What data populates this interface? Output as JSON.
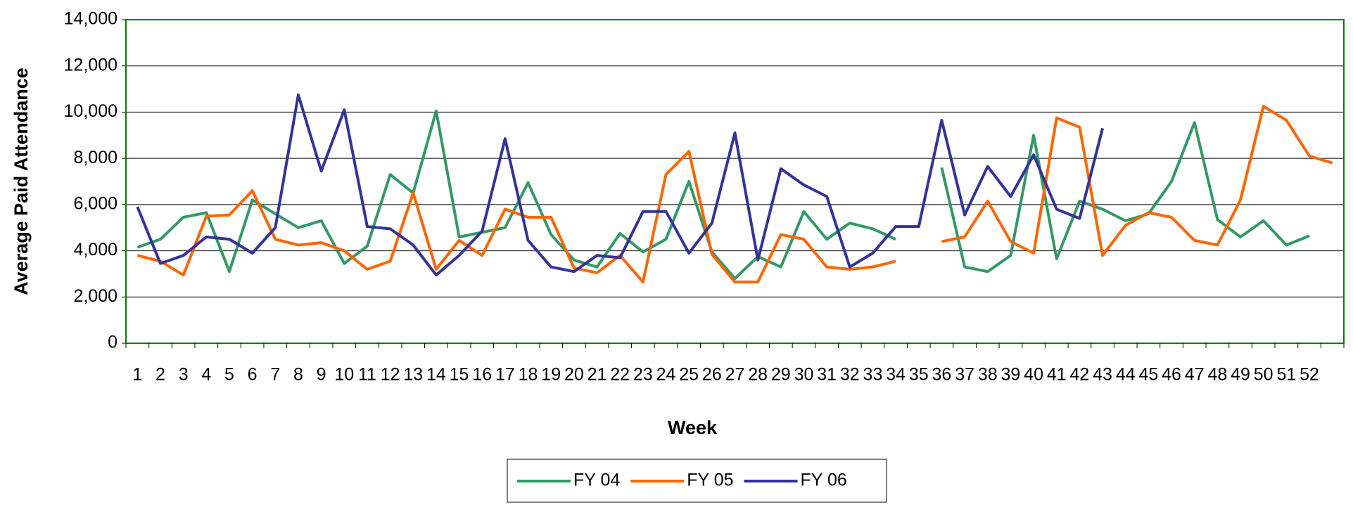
{
  "chart_data": {
    "type": "line",
    "y_label": "Average Paid Attendance",
    "x_label": "Week",
    "categories": [
      "1",
      "2",
      "3",
      "4",
      "5",
      "6",
      "7",
      "8",
      "9",
      "10",
      "11",
      "12",
      "13",
      "14",
      "15",
      "16",
      "17",
      "18",
      "19",
      "20",
      "21",
      "22",
      "23",
      "24",
      "25",
      "26",
      "27",
      "28",
      "29",
      "30",
      "31",
      "32",
      "33",
      "34",
      "35",
      "36",
      "37",
      "38",
      "39",
      "40",
      "41",
      "42",
      "43",
      "44",
      "45",
      "46",
      "47",
      "48",
      "49",
      "50",
      "51",
      "52",
      null
    ],
    "series": [
      {
        "name": "FY 04",
        "color": "#339966",
        "values": [
          4150,
          4500,
          5450,
          5650,
          3100,
          6200,
          5600,
          5000,
          5300,
          3450,
          4200,
          7300,
          6500,
          10050,
          4600,
          4800,
          5000,
          6950,
          4700,
          3600,
          3300,
          4750,
          3950,
          4500,
          7000,
          3950,
          2800,
          3750,
          3300,
          5700,
          4500,
          5200,
          4950,
          4500,
          null,
          7600,
          3300,
          3100,
          3800,
          9000,
          3650,
          6150,
          5800,
          5300,
          5600,
          7000,
          9550,
          5350,
          4600,
          5300,
          4250,
          4650,
          null
        ]
      },
      {
        "name": "FY 05",
        "color": "#ff6600",
        "values": [
          3800,
          3550,
          2950,
          5500,
          5550,
          6600,
          4500,
          4250,
          4350,
          4000,
          3200,
          3550,
          6500,
          3200,
          4450,
          3800,
          5800,
          5450,
          5450,
          3250,
          3050,
          3800,
          2650,
          7300,
          8300,
          3850,
          2650,
          2650,
          4700,
          4500,
          3300,
          3200,
          3300,
          3550,
          null,
          4400,
          4600,
          6150,
          4400,
          3900,
          9750,
          9350,
          3800,
          5100,
          5650,
          5450,
          4450,
          4250,
          6200,
          10250,
          9650,
          8100,
          7800
        ]
      },
      {
        "name": "FY 06",
        "color": "#333399",
        "values": [
          5900,
          3450,
          3800,
          4600,
          4500,
          3900,
          5000,
          10750,
          7450,
          10100,
          5050,
          4950,
          4250,
          2950,
          3800,
          4850,
          8850,
          4450,
          3300,
          3100,
          3800,
          3700,
          5700,
          5700,
          3900,
          5200,
          9100,
          3600,
          7550,
          6850,
          6350,
          3300,
          3900,
          5050,
          5050,
          9650,
          5550,
          7650,
          6350,
          8150,
          5800,
          5400,
          9300,
          null,
          null,
          null,
          null,
          null,
          null,
          null,
          null,
          null,
          null
        ]
      }
    ],
    "ylim": [
      0,
      14000
    ],
    "yticks": [
      0,
      {
        "value": 2000,
        "label": "2,000"
      },
      {
        "value": 4000,
        "label": "4,000"
      },
      {
        "value": 6000,
        "label": "6,000"
      },
      {
        "value": 8000,
        "label": "8,000"
      },
      {
        "value": 10000,
        "label": "10,000"
      },
      {
        "value": 12000,
        "label": "12,000"
      },
      {
        "value": 14000,
        "label": "14,000"
      }
    ],
    "grid": true,
    "legend": "bottom"
  }
}
